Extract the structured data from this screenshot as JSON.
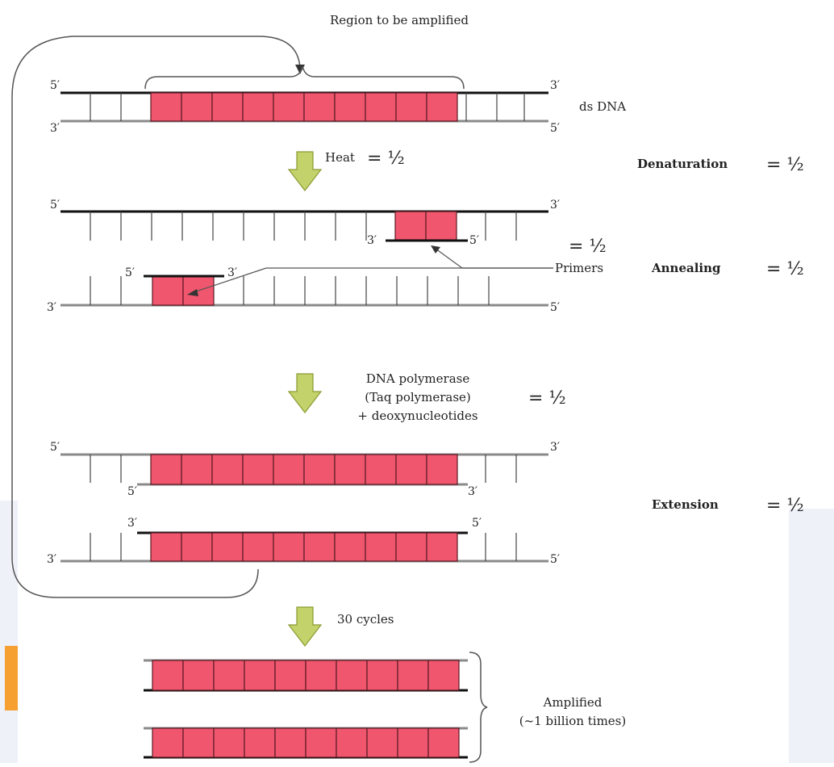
{
  "title": "Region to be amplified",
  "labels": {
    "ds_dna": "ds DNA",
    "heat": "Heat",
    "primers": "Primers",
    "polymerase_line1": "DNA polymerase",
    "polymerase_line2": "(Taq polymerase)",
    "polymerase_line3": "+ deoxynucleotides",
    "cycles": "30 cycles",
    "amplified_line1": "Amplified",
    "amplified_line2": "(~1 billion times)"
  },
  "stages": {
    "denaturation": "Denaturation",
    "annealing": "Annealing",
    "extension": "Extension"
  },
  "fraction": "= ½",
  "ends": {
    "five": "5′",
    "three": "3′"
  },
  "colors": {
    "segment": "#f0566e",
    "segment_border": "#5a1a22",
    "strand_top": "#111111",
    "strand_bottom": "#8a8a8a",
    "arrow_fill": "#c4d26b",
    "arrow_stroke": "#8a9a30",
    "side_panel": "#eef1f8",
    "orange_bar": "#f5a030"
  }
}
